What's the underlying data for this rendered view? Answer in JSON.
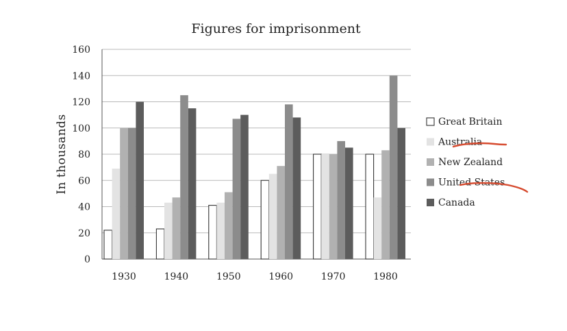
{
  "chart_data": {
    "type": "bar",
    "title": "Figures for imprisonment",
    "xlabel": "",
    "ylabel": "In thousands",
    "ylim": [
      0,
      160
    ],
    "yticks": [
      0,
      20,
      40,
      60,
      80,
      100,
      120,
      140,
      160
    ],
    "grid": true,
    "legend_position": "right",
    "categories": [
      "1930",
      "1940",
      "1950",
      "1960",
      "1970",
      "1980"
    ],
    "series": [
      {
        "name": "Great Britain",
        "color": "#ffffff",
        "values": [
          22,
          23,
          41,
          60,
          80,
          80
        ]
      },
      {
        "name": "Australia",
        "color": "#e3e3e3",
        "values": [
          69,
          43,
          43,
          65,
          80,
          47
        ]
      },
      {
        "name": "New Zealand",
        "color": "#b1b1b1",
        "values": [
          100,
          47,
          51,
          71,
          80,
          83
        ]
      },
      {
        "name": "United States",
        "color": "#8c8c8c",
        "values": [
          100,
          125,
          107,
          118,
          90,
          140
        ]
      },
      {
        "name": "Canada",
        "color": "#5c5c5c",
        "values": [
          120,
          115,
          110,
          108,
          85,
          100
        ]
      }
    ]
  },
  "annotation_color": "#d64a2e"
}
